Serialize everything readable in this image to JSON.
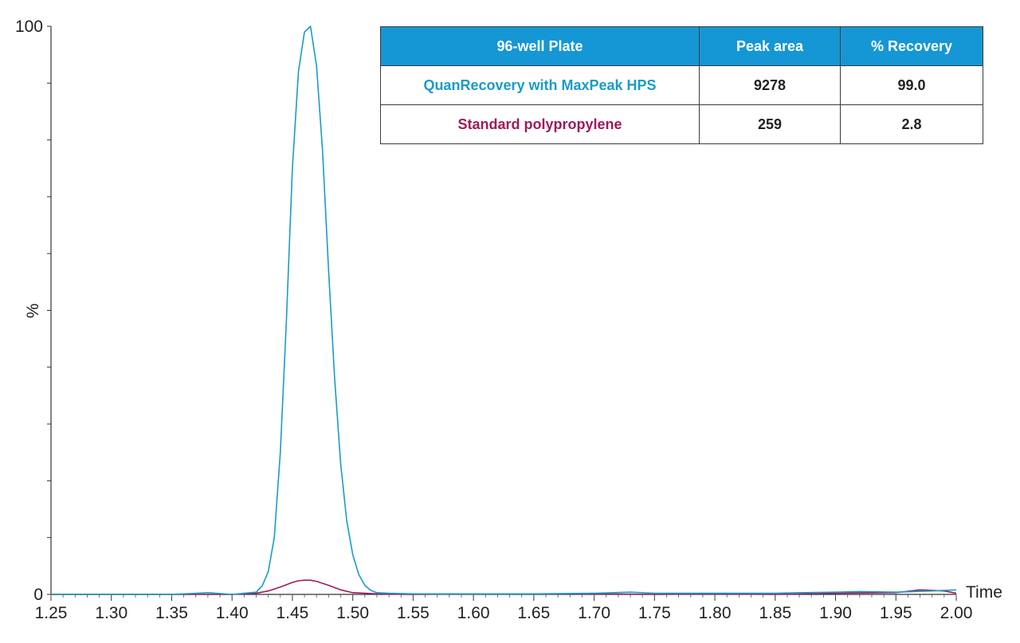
{
  "chart_data": {
    "type": "line",
    "xlabel": "Time",
    "ylabel": "%",
    "xlim": [
      1.25,
      2.0
    ],
    "ylim": [
      0,
      100
    ],
    "x_ticks": [
      "1.25",
      "1.30",
      "1.35",
      "1.40",
      "1.45",
      "1.50",
      "1.55",
      "1.60",
      "1.65",
      "1.70",
      "1.75",
      "1.80",
      "1.85",
      "1.90",
      "1.95",
      "2.00"
    ],
    "y_ticks": [
      "0",
      "100"
    ],
    "series": [
      {
        "name": "QuanRecovery with MaxPeak HPS",
        "color": "#1a9bc8",
        "points": [
          [
            1.25,
            0
          ],
          [
            1.3,
            0
          ],
          [
            1.35,
            0
          ],
          [
            1.38,
            0.3
          ],
          [
            1.4,
            0
          ],
          [
            1.41,
            0.2
          ],
          [
            1.42,
            0.4
          ],
          [
            1.425,
            1.5
          ],
          [
            1.43,
            4
          ],
          [
            1.435,
            10
          ],
          [
            1.44,
            25
          ],
          [
            1.445,
            48
          ],
          [
            1.45,
            75
          ],
          [
            1.455,
            92
          ],
          [
            1.46,
            99
          ],
          [
            1.465,
            100
          ],
          [
            1.47,
            93
          ],
          [
            1.475,
            78
          ],
          [
            1.48,
            57
          ],
          [
            1.485,
            38
          ],
          [
            1.49,
            23
          ],
          [
            1.495,
            13
          ],
          [
            1.5,
            7
          ],
          [
            1.505,
            3.5
          ],
          [
            1.51,
            1.6
          ],
          [
            1.515,
            0.7
          ],
          [
            1.52,
            0.3
          ],
          [
            1.53,
            0.2
          ],
          [
            1.55,
            0.1
          ],
          [
            1.6,
            0.1
          ],
          [
            1.65,
            0.1
          ],
          [
            1.7,
            0.2
          ],
          [
            1.73,
            0.4
          ],
          [
            1.75,
            0.2
          ],
          [
            1.8,
            0.2
          ],
          [
            1.85,
            0.2
          ],
          [
            1.87,
            0.3
          ],
          [
            1.9,
            0.4
          ],
          [
            1.92,
            0.5
          ],
          [
            1.95,
            0.4
          ],
          [
            1.98,
            0.6
          ],
          [
            2.0,
            0.8
          ]
        ]
      },
      {
        "name": "Standard polypropylene",
        "color": "#9c1c5b",
        "points": [
          [
            1.25,
            0
          ],
          [
            1.3,
            0
          ],
          [
            1.35,
            0
          ],
          [
            1.4,
            0
          ],
          [
            1.42,
            0.2
          ],
          [
            1.43,
            0.6
          ],
          [
            1.44,
            1.3
          ],
          [
            1.45,
            2.1
          ],
          [
            1.455,
            2.4
          ],
          [
            1.46,
            2.5
          ],
          [
            1.465,
            2.5
          ],
          [
            1.47,
            2.3
          ],
          [
            1.48,
            1.6
          ],
          [
            1.49,
            0.8
          ],
          [
            1.5,
            0.3
          ],
          [
            1.52,
            0.1
          ],
          [
            1.55,
            0
          ],
          [
            1.6,
            0.1
          ],
          [
            1.65,
            0.1
          ],
          [
            1.7,
            0.1
          ],
          [
            1.75,
            0
          ],
          [
            1.8,
            0.1
          ],
          [
            1.85,
            0
          ],
          [
            1.9,
            0.2
          ],
          [
            1.95,
            0.3
          ],
          [
            1.97,
            0.8
          ],
          [
            1.99,
            0.6
          ],
          [
            2.0,
            0.2
          ]
        ]
      }
    ]
  },
  "table": {
    "header_color": "#1597d5",
    "headers": [
      "96-well Plate",
      "Peak area",
      "% Recovery"
    ],
    "rows": [
      {
        "name": "QuanRecovery with MaxPeak HPS",
        "peak_area": "9278",
        "recovery": "99.0",
        "color": "#1a9bc8"
      },
      {
        "name": "Standard polypropylene",
        "peak_area": "259",
        "recovery": "2.8",
        "color": "#9c1c5b"
      }
    ]
  }
}
